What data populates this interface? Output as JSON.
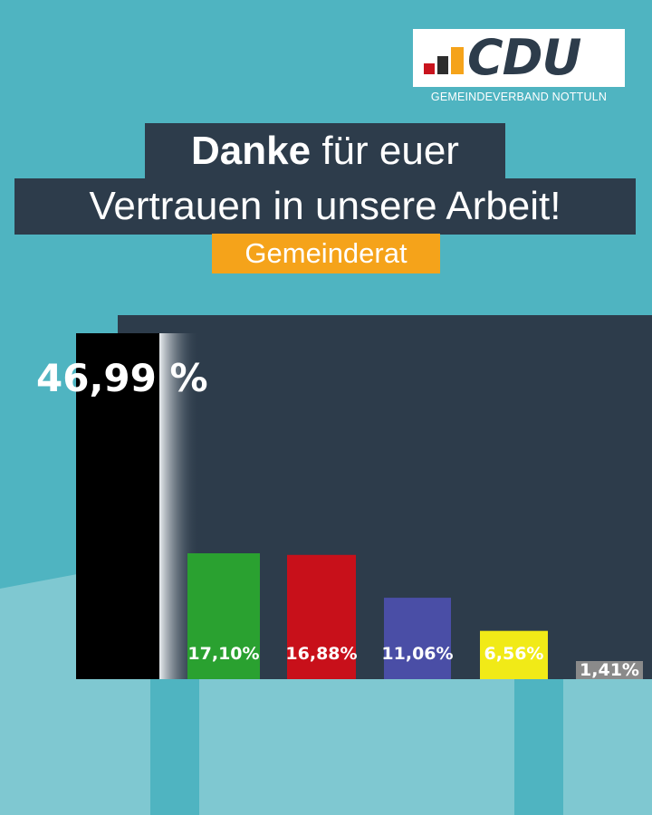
{
  "logo": {
    "text": "CDU",
    "subtitle": "GEMEINDEVERBAND NOTTULN",
    "bar_colors": [
      "#c9141e",
      "#2d2d2d",
      "#f5a31a"
    ]
  },
  "headline": {
    "bold": "Danke",
    "rest": " für euer",
    "line2": "Vertrauen in unsere Arbeit!",
    "tag": "Gemeinderat"
  },
  "colors": {
    "background": "#4fb4c1",
    "panel": "#2d3c4b",
    "tag": "#f5a31a"
  },
  "chart_data": {
    "type": "bar",
    "title": "",
    "xlabel": "",
    "ylabel": "",
    "ylim": [
      0,
      46.99
    ],
    "categories": [
      "",
      "",
      "",
      "",
      "",
      ""
    ],
    "values": [
      46.99,
      17.1,
      16.88,
      11.06,
      6.56,
      1.41
    ],
    "labels": [
      "46,99 %",
      "17,10%",
      "16,88%",
      "11,06%",
      "6,56%",
      "1,41%"
    ],
    "colors": [
      "#000000",
      "#2aa130",
      "#c8101a",
      "#4a4ea6",
      "#f1ea17",
      "#8a8a8a"
    ],
    "grid": false,
    "legend": "none"
  }
}
